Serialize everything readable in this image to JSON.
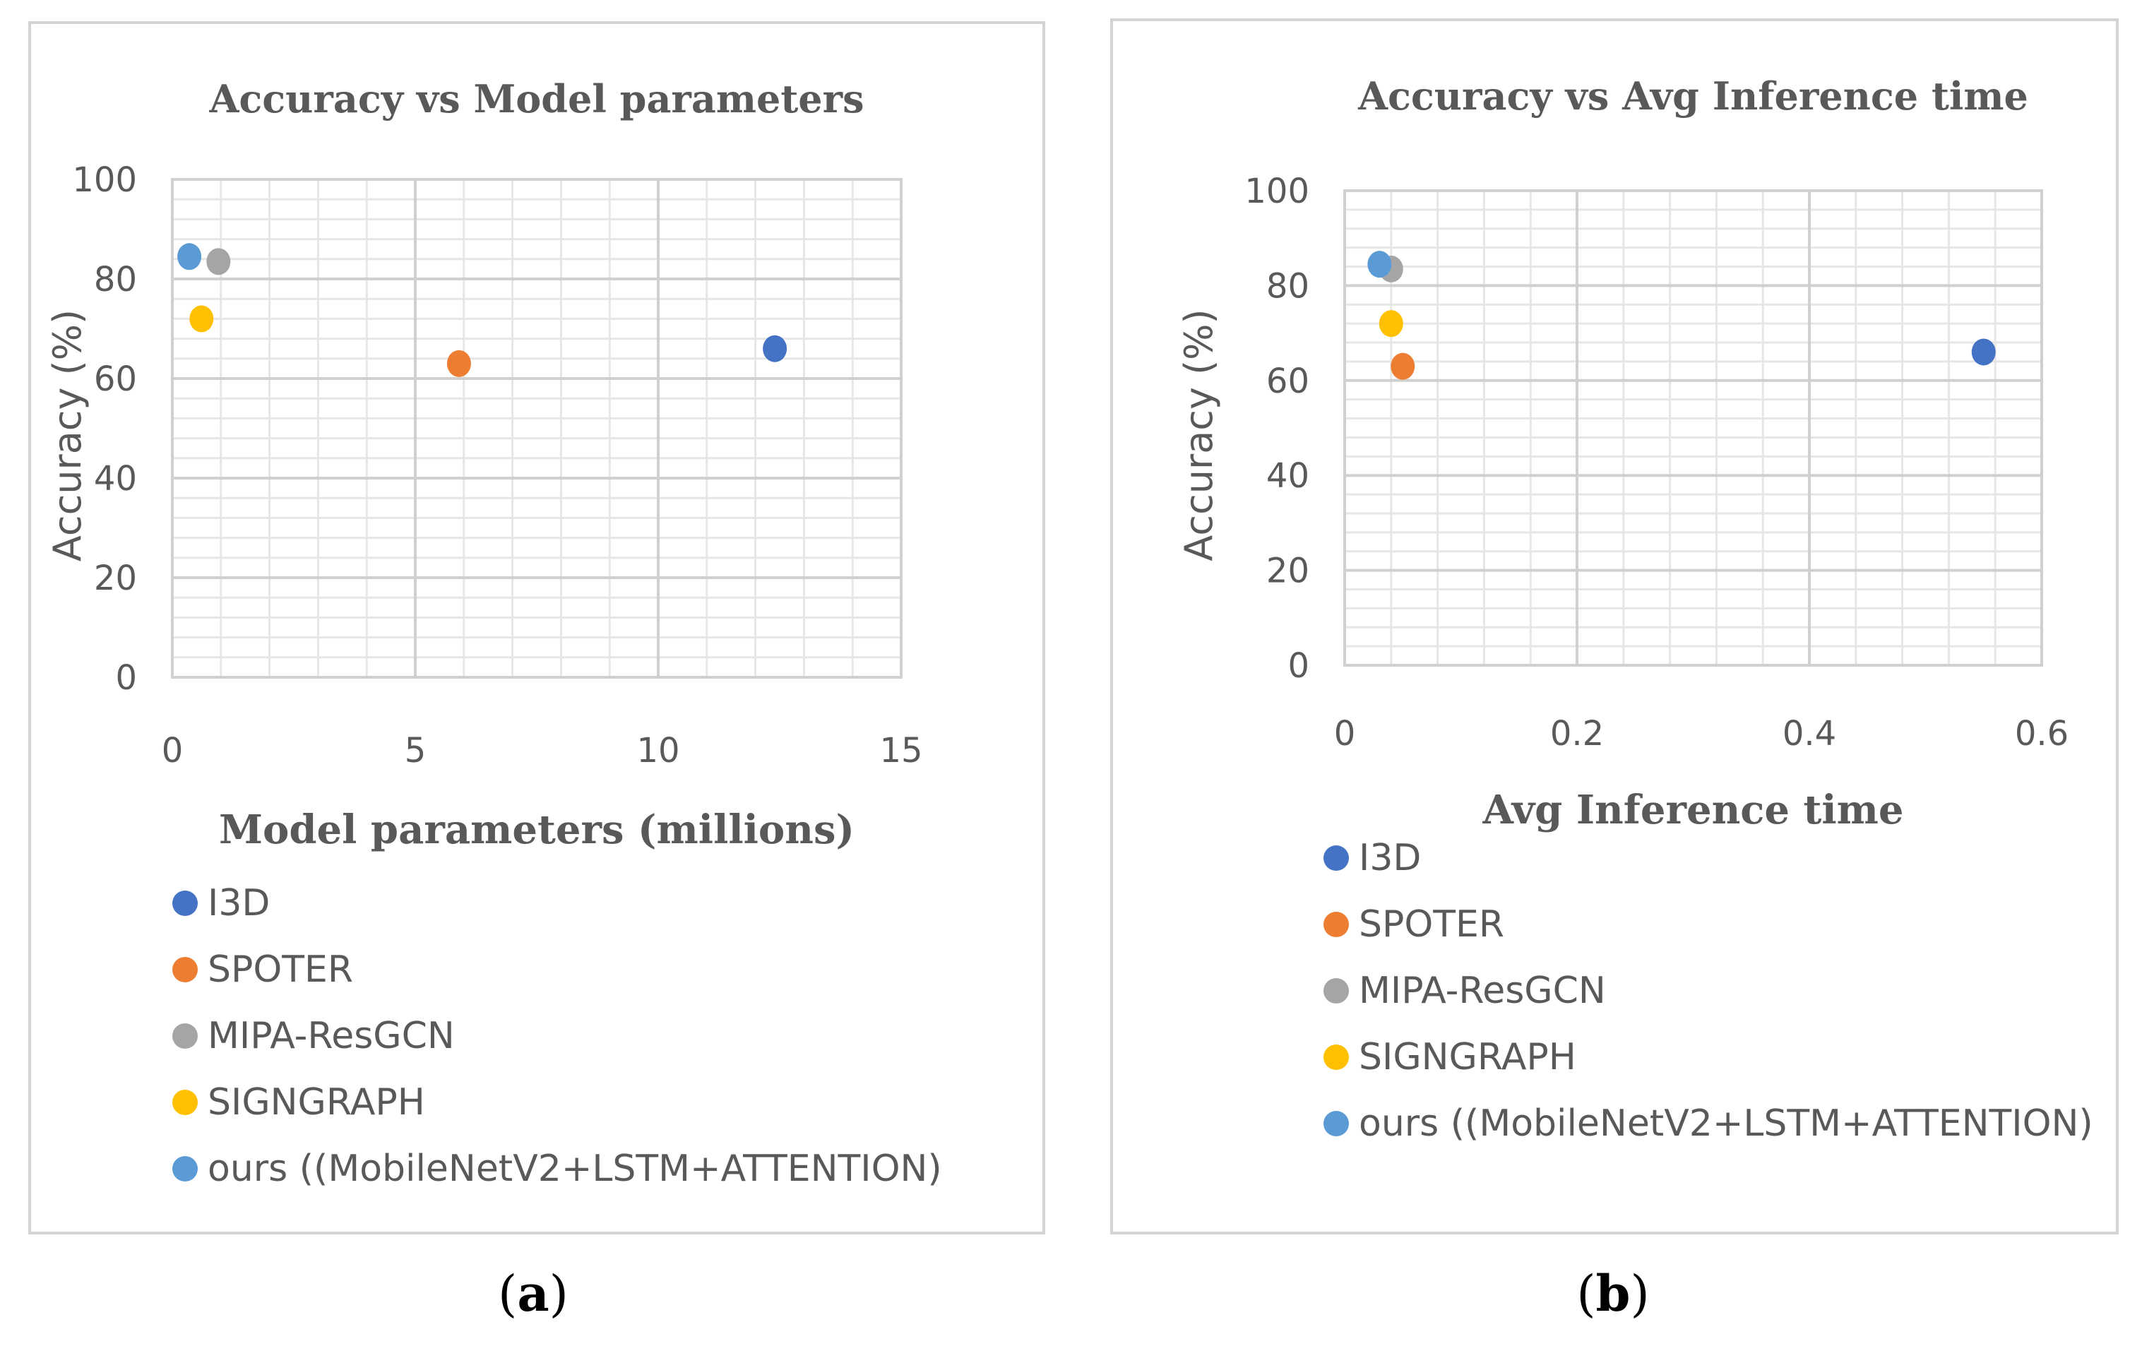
{
  "chart_data": [
    {
      "type": "scatter",
      "title": "Accuracy vs Model parameters",
      "xlabel": "Model parameters (millions)",
      "ylabel": "Accuracy (%)",
      "xlim": [
        0,
        15
      ],
      "ylim": [
        0,
        100
      ],
      "xticks": [
        "0",
        "5",
        "10",
        "15"
      ],
      "yticks": [
        "0",
        "20",
        "40",
        "60",
        "80",
        "100"
      ],
      "x_minor_step": 1,
      "y_minor_step": 4,
      "grid": true,
      "legend_position": "bottom",
      "caption_letter": "a",
      "series": [
        {
          "name": "I3D",
          "color": "#4472C4",
          "x": [
            12.4
          ],
          "y": [
            66
          ]
        },
        {
          "name": "SPOTER",
          "color": "#ED7D31",
          "x": [
            5.9
          ],
          "y": [
            63
          ]
        },
        {
          "name": "MIPA-ResGCN",
          "color": "#A5A5A5",
          "x": [
            0.95
          ],
          "y": [
            83.5
          ]
        },
        {
          "name": "SIGNGRAPH",
          "color": "#FFC000",
          "x": [
            0.6
          ],
          "y": [
            72
          ]
        },
        {
          "name": "ours ((MobileNetV2+LSTM+ATTENTION)",
          "color": "#5B9BD5",
          "x": [
            0.35
          ],
          "y": [
            84.5
          ]
        }
      ]
    },
    {
      "type": "scatter",
      "title": "Accuracy vs Avg Inference time",
      "xlabel": "Avg Inference time",
      "ylabel": "Accuracy (%)",
      "xlim": [
        0,
        0.6
      ],
      "ylim": [
        0,
        100
      ],
      "xticks": [
        "0",
        "0.2",
        "0.4",
        "0.6"
      ],
      "yticks": [
        "0",
        "20",
        "40",
        "60",
        "80",
        "100"
      ],
      "x_minor_step": 0.04,
      "y_minor_step": 4,
      "grid": true,
      "legend_position": "bottom",
      "caption_letter": "b",
      "series": [
        {
          "name": "I3D",
          "color": "#4472C4",
          "x": [
            0.55
          ],
          "y": [
            66
          ]
        },
        {
          "name": "SPOTER",
          "color": "#ED7D31",
          "x": [
            0.05
          ],
          "y": [
            63
          ]
        },
        {
          "name": "MIPA-ResGCN",
          "color": "#A5A5A5",
          "x": [
            0.04
          ],
          "y": [
            83.5
          ]
        },
        {
          "name": "SIGNGRAPH",
          "color": "#FFC000",
          "x": [
            0.04
          ],
          "y": [
            72
          ]
        },
        {
          "name": "ours ((MobileNetV2+LSTM+ATTENTION)",
          "color": "#5B9BD5",
          "x": [
            0.03
          ],
          "y": [
            84.5
          ]
        }
      ]
    }
  ]
}
